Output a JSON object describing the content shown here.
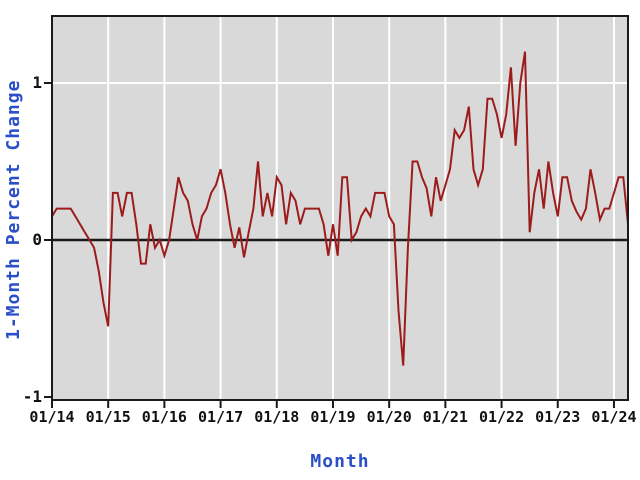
{
  "chart": {
    "xlabel": "Month",
    "ylabel": "1-Month Percent Change",
    "x_tick_labels": [
      "01/14",
      "01/15",
      "01/16",
      "01/17",
      "01/18",
      "01/19",
      "01/20",
      "01/21",
      "01/22",
      "01/23",
      "01/24"
    ],
    "y_tick_labels": [
      "1",
      "0",
      "-1"
    ],
    "colors": {
      "line": "#9c1c1c",
      "plot_background": "#d9d9d9",
      "gridline": "#ffffff",
      "axis": "#1a1a1a",
      "tick_text": "#111111",
      "axis_title_text": "#2b4fc8",
      "outer_background": "#ffffff"
    }
  },
  "chart_data": {
    "type": "line",
    "title": "",
    "xlabel": "Month",
    "ylabel": "1-Month Percent Change",
    "x_start": "2014-01",
    "x_end": "2024-04",
    "x_frequency": "monthly",
    "x_tick_labels": [
      "01/14",
      "01/15",
      "01/16",
      "01/17",
      "01/18",
      "01/19",
      "01/20",
      "01/21",
      "01/22",
      "01/23",
      "01/24"
    ],
    "yticks": [
      1,
      0,
      -1
    ],
    "ylim": [
      -1.02,
      1.43
    ],
    "grid": true,
    "legend": false,
    "series": [
      {
        "name": "1-Month Percent Change",
        "values": [
          0.15,
          0.2,
          0.2,
          0.2,
          0.2,
          0.15,
          0.1,
          0.05,
          0.0,
          -0.05,
          -0.2,
          -0.4,
          -0.55,
          0.3,
          0.3,
          0.15,
          0.3,
          0.3,
          0.1,
          -0.15,
          -0.15,
          0.1,
          -0.05,
          0.0,
          -0.1,
          0.0,
          0.2,
          0.4,
          0.3,
          0.25,
          0.1,
          0.0,
          0.15,
          0.2,
          0.3,
          0.35,
          0.45,
          0.3,
          0.1,
          -0.05,
          0.08,
          -0.11,
          0.05,
          0.2,
          0.5,
          0.15,
          0.3,
          0.15,
          0.4,
          0.35,
          0.1,
          0.3,
          0.25,
          0.1,
          0.2,
          0.2,
          0.2,
          0.2,
          0.1,
          -0.1,
          0.1,
          -0.1,
          0.4,
          0.4,
          0.0,
          0.05,
          0.15,
          0.2,
          0.15,
          0.3,
          0.3,
          0.3,
          0.15,
          0.1,
          -0.45,
          -0.8,
          -0.05,
          0.5,
          0.5,
          0.4,
          0.33,
          0.15,
          0.4,
          0.25,
          0.35,
          0.45,
          0.7,
          0.65,
          0.7,
          0.85,
          0.45,
          0.35,
          0.45,
          0.9,
          0.9,
          0.8,
          0.65,
          0.8,
          1.1,
          0.6,
          1.0,
          1.2,
          0.05,
          0.3,
          0.45,
          0.2,
          0.5,
          0.3,
          0.15,
          0.4,
          0.4,
          0.25,
          0.18,
          0.13,
          0.2,
          0.45,
          0.3,
          0.13,
          0.2,
          0.2,
          0.3,
          0.4,
          0.4,
          0.1
        ]
      }
    ]
  }
}
